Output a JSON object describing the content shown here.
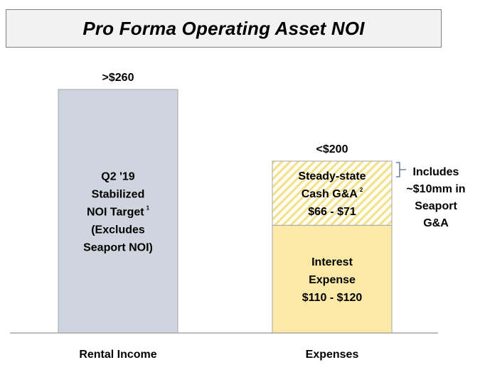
{
  "chart_data": {
    "type": "bar",
    "title": "Pro Forma Operating Asset NOI",
    "categories": [
      "Rental Income",
      "Expenses"
    ],
    "ylim": [
      0,
      300
    ],
    "grid": false,
    "legend": "none",
    "bars": [
      {
        "category": "Rental Income",
        "total_label": ">$260",
        "segments": [
          {
            "value": 260,
            "color": "#cfd5de",
            "pattern": "solid",
            "lines": [
              "Q2 '19",
              "Stabilized",
              "NOI Target",
              "(Excludes",
              "Seaport NOI)"
            ],
            "superscript": "1"
          }
        ]
      },
      {
        "category": "Expenses",
        "total_label": "<$200",
        "segments": [
          {
            "value": 115,
            "color": "#fbeaa7",
            "pattern": "solid",
            "lines": [
              "Interest",
              "Expense",
              "$110 - $120"
            ]
          },
          {
            "value": 68.5,
            "color": "#fbeaa7",
            "pattern": "diagonal-hatch",
            "lines": [
              "Steady-state",
              "Cash G&A",
              "$66 - $71"
            ],
            "superscript": "2"
          }
        ]
      }
    ],
    "annotation": {
      "lines": [
        "Includes",
        "~$10mm in",
        "Seaport",
        "G&A"
      ]
    }
  }
}
